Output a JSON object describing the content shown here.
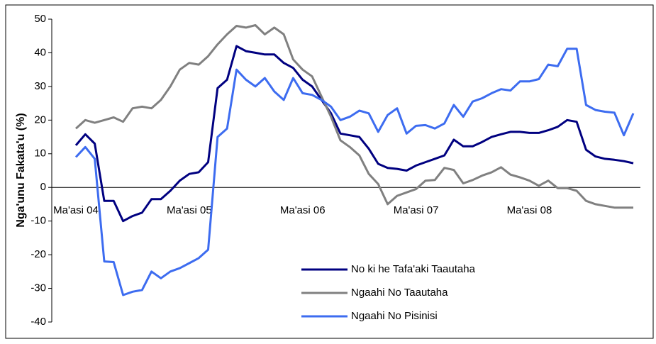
{
  "chart_data": {
    "type": "line",
    "ylabel": "Nga'unu Fakata'u (%)",
    "categories": [
      "Ma'asi 04",
      null,
      null,
      null,
      null,
      null,
      null,
      null,
      null,
      null,
      null,
      null,
      "Ma'asi 05",
      null,
      null,
      null,
      null,
      null,
      null,
      null,
      null,
      null,
      null,
      null,
      "Ma'asi 06",
      null,
      null,
      null,
      null,
      null,
      null,
      null,
      null,
      null,
      null,
      null,
      "Ma'asi 07",
      null,
      null,
      null,
      null,
      null,
      null,
      null,
      null,
      null,
      null,
      null,
      "Ma'asi 08",
      null,
      null,
      null,
      null,
      null,
      null,
      null,
      null,
      null,
      null,
      null
    ],
    "series": [
      {
        "name": "No ki he Tafa'aki Taautaha",
        "color": "#000080",
        "values": [
          12.5,
          15.8,
          13,
          -4,
          -4,
          -10,
          -8.5,
          -7.5,
          -3.5,
          -3.5,
          -1,
          2,
          4,
          4.5,
          7.5,
          29.5,
          32,
          42,
          40.5,
          40,
          39.5,
          39.5,
          37,
          35.5,
          32,
          30,
          26,
          22,
          16,
          15.5,
          15,
          11.5,
          7,
          5.8,
          5.5,
          5,
          6.5,
          7.5,
          8.5,
          9.5,
          14.2,
          12.2,
          12.2,
          13.5,
          15,
          15.8,
          16.5,
          16.5,
          16.2,
          16.2,
          17,
          18,
          20,
          19.5,
          11.2,
          9.2,
          8.5,
          8.2,
          7.8,
          7.2
        ]
      },
      {
        "name": "Ngaahi No Taautaha",
        "color": "#808080",
        "values": [
          17.5,
          20,
          19.2,
          20,
          20.8,
          19.5,
          23.5,
          24,
          23.5,
          26,
          30,
          35,
          37,
          36.5,
          39,
          42.5,
          45.5,
          48,
          47.5,
          48.2,
          45.5,
          47.5,
          45.5,
          38,
          35,
          33,
          27,
          21,
          14,
          12,
          9.5,
          4,
          1,
          -5,
          -2.5,
          -1.5,
          -0.5,
          2,
          2.2,
          5.8,
          5.2,
          1.2,
          2.2,
          3.5,
          4.5,
          6,
          3.8,
          3,
          2,
          0.5,
          2,
          -0.2,
          -0.2,
          -1,
          -4,
          -5,
          -5.5,
          -6,
          -6,
          -6
        ]
      },
      {
        "name": "Ngaahi No Pisinisi",
        "color": "#3d6cf0",
        "values": [
          9,
          12,
          8.5,
          -22,
          -22.2,
          -32,
          -31,
          -30.5,
          -25,
          -27,
          -25,
          -24,
          -22.5,
          -21,
          -18.5,
          15,
          17.5,
          35,
          32,
          30,
          32.5,
          28.5,
          26,
          32.5,
          28,
          27.5,
          26,
          24,
          20,
          21,
          22.8,
          22,
          16.5,
          21.5,
          23.5,
          16,
          18.3,
          18.5,
          17.5,
          19,
          24.5,
          21,
          25.5,
          26.5,
          28,
          29.2,
          28.8,
          31.5,
          31.5,
          32.2,
          36.5,
          36,
          41.2,
          41.2,
          24.5,
          23,
          22.5,
          22.2,
          15.5,
          22
        ]
      }
    ],
    "ylim": [
      -40,
      50
    ],
    "yticks": [
      -40,
      -30,
      -20,
      -10,
      0,
      10,
      20,
      30,
      40,
      50
    ],
    "grid": false,
    "legend": "lower center"
  }
}
